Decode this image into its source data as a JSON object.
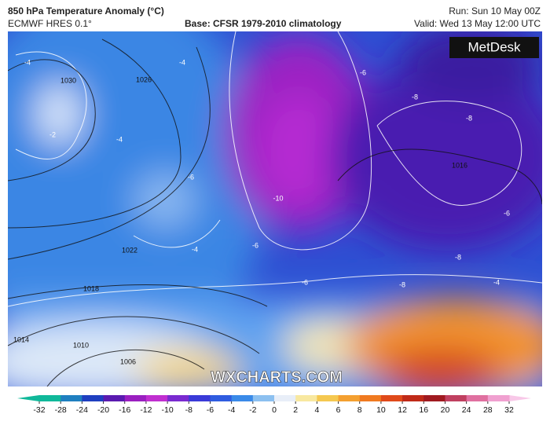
{
  "header": {
    "title": "850 hPa Temperature Anomaly (°C)",
    "model": "ECMWF HRES 0.1°",
    "base": "Base: CFSR 1979-2010 climatology",
    "run": "Run: Sun 10 May 00Z",
    "valid": "Valid: Wed 13 May 12:00 UTC"
  },
  "logo": "MetDesk",
  "watermark": "WXCHARTS.COM",
  "contour_labels": [
    "-4",
    "-2",
    "-4",
    "-4",
    "-6",
    "-4",
    "-6",
    "-10",
    "-6",
    "-8",
    "-8",
    "-6",
    "-8",
    "-6",
    "-8",
    "-4",
    "1030",
    "1026",
    "1022",
    "1018",
    "1014",
    "1010",
    "1006",
    "1016"
  ],
  "colorbar": {
    "ticks": [
      -32,
      -28,
      -24,
      -20,
      -16,
      -12,
      -10,
      -8,
      -6,
      -4,
      -2,
      0,
      2,
      4,
      6,
      8,
      10,
      12,
      16,
      20,
      24,
      28,
      32
    ]
  }
}
